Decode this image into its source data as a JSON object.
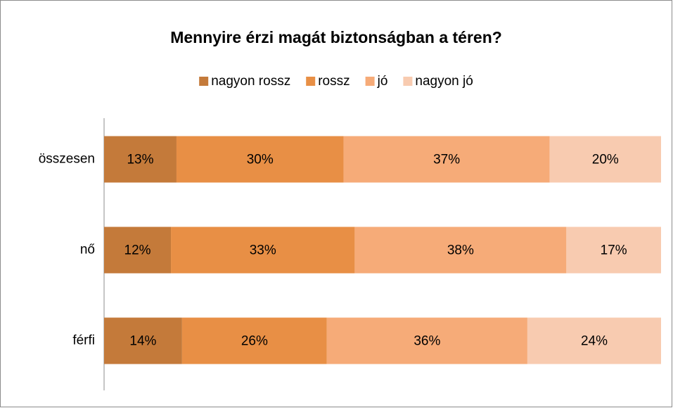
{
  "chart_data": {
    "type": "bar",
    "orientation": "horizontal",
    "stacked": true,
    "title": "Mennyire érzi magát biztonságban a téren?",
    "categories": [
      "összesen",
      "nő",
      "férfi"
    ],
    "series": [
      {
        "name": "nagyon rossz",
        "color": "#c47a3a",
        "values": [
          13,
          12,
          14
        ],
        "value_labels": [
          "13%",
          "12%",
          "14%"
        ]
      },
      {
        "name": "rossz",
        "color": "#e88f45",
        "values": [
          30,
          33,
          26
        ],
        "value_labels": [
          "30%",
          "33%",
          "26%"
        ]
      },
      {
        "name": "jó",
        "color": "#f6ab78",
        "values": [
          37,
          38,
          36
        ],
        "value_labels": [
          "37%",
          "38%",
          "36%"
        ]
      },
      {
        "name": "nagyon jó",
        "color": "#f8cbb0",
        "values": [
          20,
          17,
          24
        ],
        "value_labels": [
          "20%",
          "17%",
          "24%"
        ]
      }
    ],
    "xlim": [
      0,
      100
    ],
    "legend": "top"
  }
}
